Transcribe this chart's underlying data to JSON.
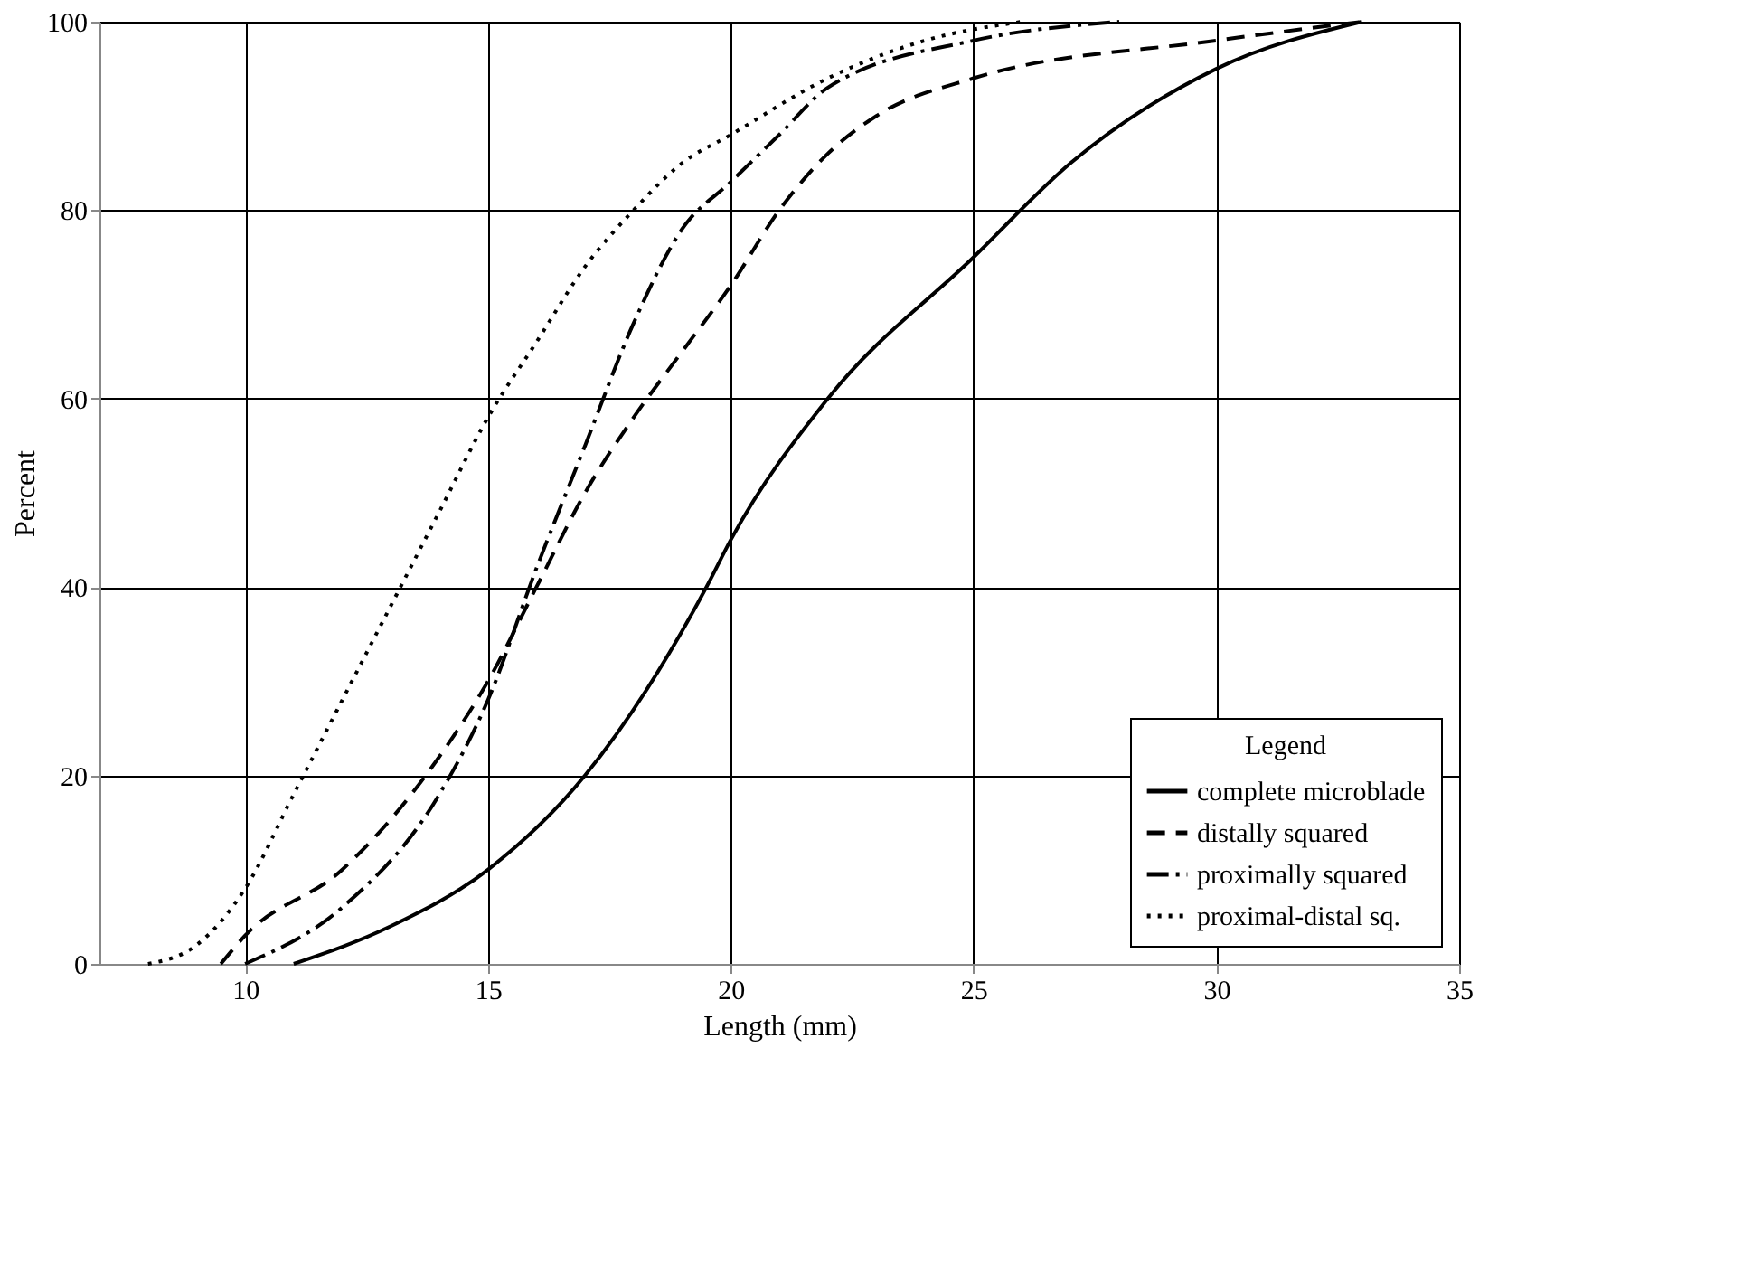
{
  "chart_data": {
    "type": "line",
    "xlabel": "Length (mm)",
    "ylabel": "Percent",
    "legend_title": "Legend",
    "xlim": [
      7,
      35
    ],
    "xticks": [
      10,
      15,
      20,
      25,
      30,
      35
    ],
    "ylim": [
      0,
      100
    ],
    "yticks": [
      0,
      20,
      40,
      60,
      80,
      100
    ],
    "grid": true,
    "legend": "bottom right",
    "marker": "none",
    "series": [
      {
        "name": "complete microblade",
        "color": "#000000",
        "line_style": "solid",
        "x": [
          11,
          13,
          15,
          17,
          19.5,
          20,
          22,
          25,
          27,
          30,
          33
        ],
        "values": [
          0,
          4,
          10,
          20,
          40,
          45,
          60,
          75,
          85,
          95,
          100
        ]
      },
      {
        "name": "distally squared",
        "color": "#000000",
        "line_style": "dashed",
        "x": [
          9.5,
          10,
          12,
          14,
          15,
          16,
          17,
          18,
          19,
          20,
          21,
          22,
          23,
          25,
          30,
          33
        ],
        "values": [
          0,
          3,
          10,
          22,
          30,
          40,
          50,
          58,
          65,
          72,
          80,
          86,
          90,
          94,
          98,
          100
        ]
      },
      {
        "name": "proximally squared",
        "color": "#000000",
        "line_style": "dashdot",
        "x": [
          10,
          12,
          14,
          15,
          16,
          17,
          18,
          19,
          20,
          21,
          22,
          25,
          28
        ],
        "values": [
          0,
          6,
          18,
          28,
          42,
          55,
          68,
          78,
          83,
          88,
          93,
          98,
          100
        ]
      },
      {
        "name": "proximal-distal sq.",
        "color": "#000000",
        "line_style": "dotted",
        "x": [
          8,
          9,
          10,
          11,
          12,
          13,
          14,
          15,
          16,
          17,
          18,
          19,
          20,
          22,
          24,
          26
        ],
        "values": [
          0,
          2,
          8,
          18,
          28,
          38,
          48,
          58,
          66,
          74,
          80,
          85,
          88,
          94,
          98,
          100
        ]
      }
    ]
  }
}
